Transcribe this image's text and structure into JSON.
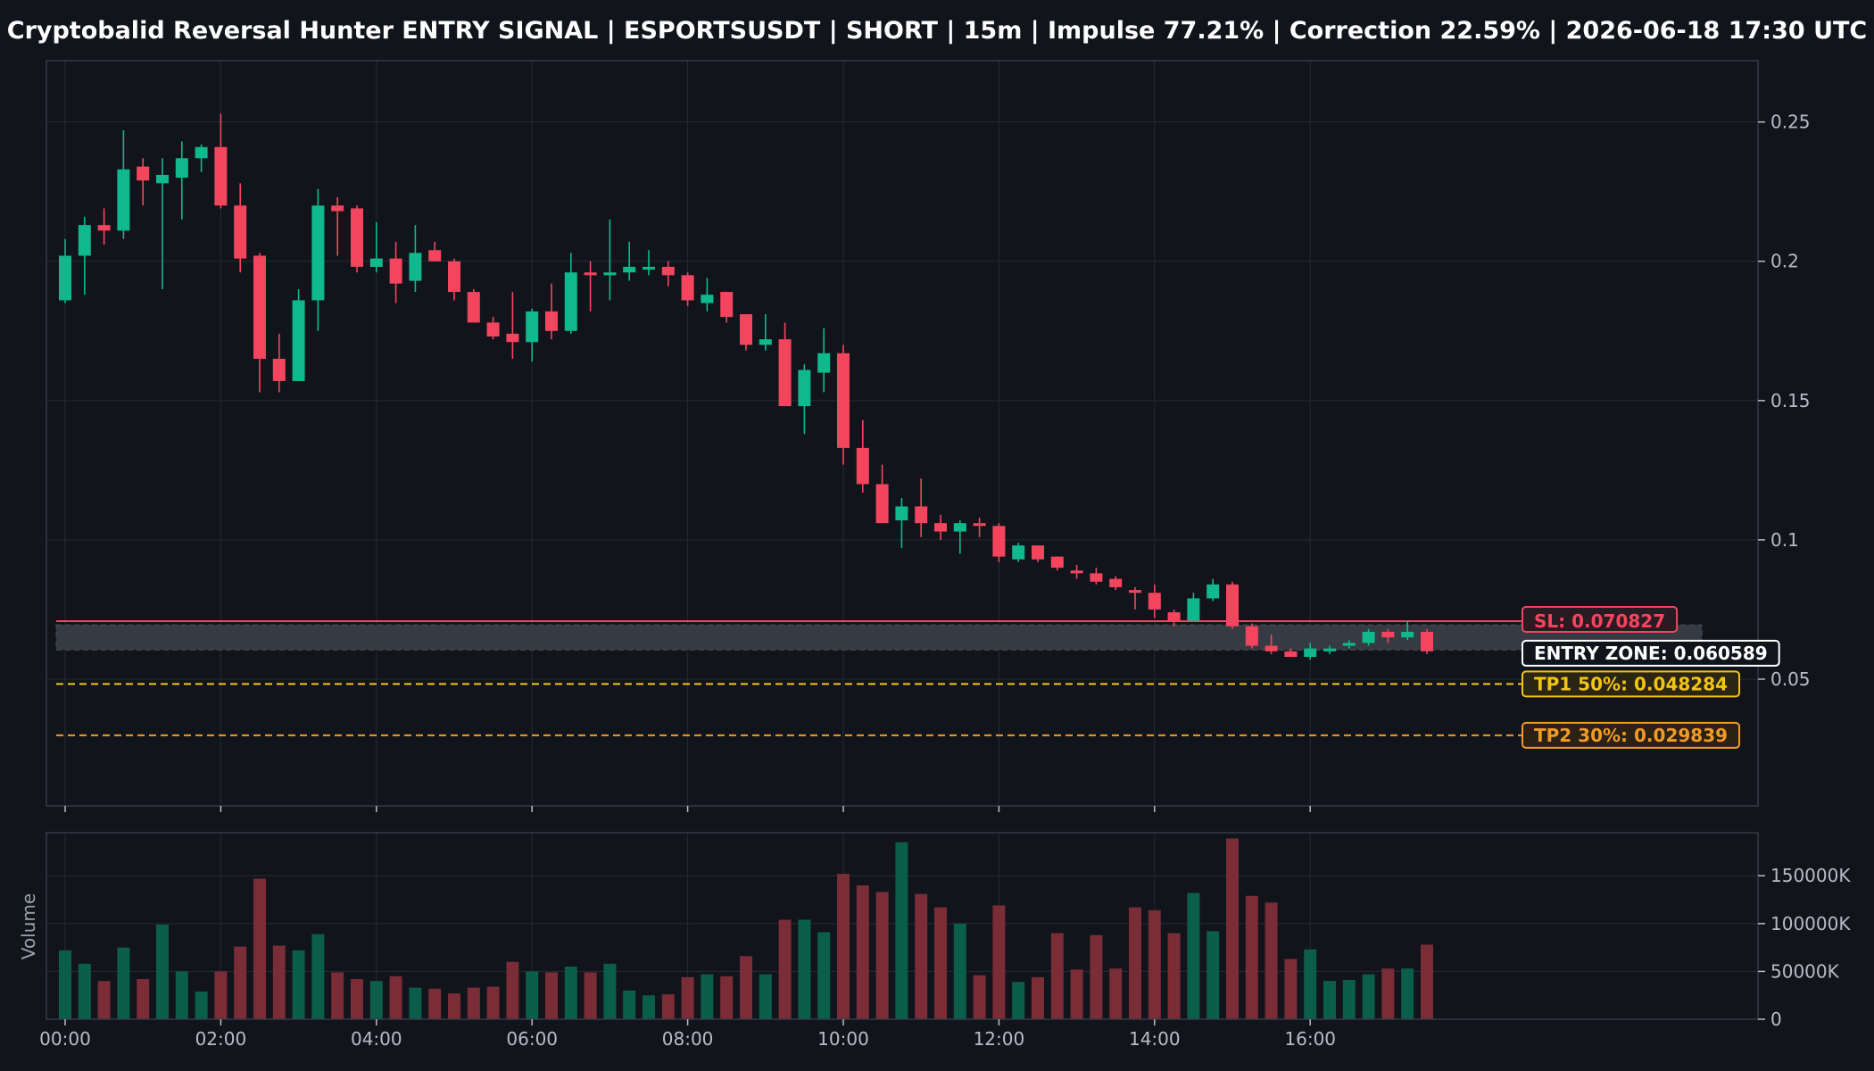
{
  "chart_data": {
    "type": "candlestick",
    "title": "Cryptobalid Reversal Hunter ENTRY SIGNAL | ESPORTSUSDT | SHORT | 15m | Impulse 77.21% | Correction 22.59% | 2026-06-18 17:30 UTC",
    "symbol": "ESPORTSUSDT",
    "timeframe": "15m",
    "x_ticks": [
      "00:00",
      "02:00",
      "04:00",
      "06:00",
      "08:00",
      "10:00",
      "12:00",
      "14:00",
      "16:00"
    ],
    "price_ticks": [
      0.05,
      0.1,
      0.15,
      0.2,
      0.25
    ],
    "price_tick_labels": [
      "0.05",
      "0.1",
      "0.15",
      "0.2",
      "0.25"
    ],
    "price_range": [
      0.0045,
      0.272
    ],
    "volume_label": "Volume",
    "volume_ticks": [
      0,
      50000,
      100000,
      150000
    ],
    "volume_tick_labels": [
      "0",
      "50000K",
      "100000K",
      "150000K"
    ],
    "volume_range": [
      0,
      195000
    ],
    "grid": true,
    "colors": {
      "up": "#0fb98d",
      "down": "#f4455e",
      "volume_up": "#0b5e4a",
      "volume_down": "#7a2c37",
      "sl": "#f4455e",
      "entry": "#ffffff",
      "tp1": "#f2c416",
      "tp2": "#f19a26",
      "entry_zone": "#363a42",
      "background": "#11141b"
    },
    "levels": {
      "sl": {
        "label": "SL: 0.070827",
        "value": 0.070827
      },
      "entry": {
        "label": "ENTRY ZONE: 0.060589",
        "value": 0.060589,
        "zone": [
          0.0605,
          0.0695
        ]
      },
      "tp1": {
        "label": "TP1 50%: 0.048284",
        "value": 0.048284
      },
      "tp2": {
        "label": "TP2 30%: 0.029839",
        "value": 0.029839
      }
    },
    "candles": [
      {
        "t": "00:00",
        "o": 0.186,
        "h": 0.208,
        "l": 0.185,
        "c": 0.202,
        "v": 72000
      },
      {
        "t": "00:15",
        "o": 0.202,
        "h": 0.216,
        "l": 0.188,
        "c": 0.213,
        "v": 58000
      },
      {
        "t": "00:30",
        "o": 0.213,
        "h": 0.219,
        "l": 0.206,
        "c": 0.211,
        "v": 40000
      },
      {
        "t": "00:45",
        "o": 0.211,
        "h": 0.247,
        "l": 0.208,
        "c": 0.233,
        "v": 75000
      },
      {
        "t": "01:00",
        "o": 0.234,
        "h": 0.237,
        "l": 0.22,
        "c": 0.229,
        "v": 42000
      },
      {
        "t": "01:15",
        "o": 0.228,
        "h": 0.237,
        "l": 0.19,
        "c": 0.231,
        "v": 99000
      },
      {
        "t": "01:30",
        "o": 0.23,
        "h": 0.243,
        "l": 0.215,
        "c": 0.237,
        "v": 50000
      },
      {
        "t": "01:45",
        "o": 0.237,
        "h": 0.242,
        "l": 0.232,
        "c": 0.241,
        "v": 29000
      },
      {
        "t": "02:00",
        "o": 0.241,
        "h": 0.253,
        "l": 0.219,
        "c": 0.22,
        "v": 50000
      },
      {
        "t": "02:15",
        "o": 0.22,
        "h": 0.228,
        "l": 0.196,
        "c": 0.201,
        "v": 76000
      },
      {
        "t": "02:30",
        "o": 0.202,
        "h": 0.203,
        "l": 0.153,
        "c": 0.165,
        "v": 147000
      },
      {
        "t": "02:45",
        "o": 0.165,
        "h": 0.174,
        "l": 0.153,
        "c": 0.157,
        "v": 77000
      },
      {
        "t": "03:00",
        "o": 0.157,
        "h": 0.19,
        "l": 0.157,
        "c": 0.186,
        "v": 72000
      },
      {
        "t": "03:15",
        "o": 0.186,
        "h": 0.226,
        "l": 0.175,
        "c": 0.22,
        "v": 89000
      },
      {
        "t": "03:30",
        "o": 0.22,
        "h": 0.223,
        "l": 0.202,
        "c": 0.218,
        "v": 49000
      },
      {
        "t": "03:45",
        "o": 0.219,
        "h": 0.22,
        "l": 0.196,
        "c": 0.198,
        "v": 42000
      },
      {
        "t": "04:00",
        "o": 0.198,
        "h": 0.214,
        "l": 0.196,
        "c": 0.201,
        "v": 40000
      },
      {
        "t": "04:15",
        "o": 0.201,
        "h": 0.207,
        "l": 0.185,
        "c": 0.192,
        "v": 45000
      },
      {
        "t": "04:30",
        "o": 0.193,
        "h": 0.213,
        "l": 0.189,
        "c": 0.203,
        "v": 33000
      },
      {
        "t": "04:45",
        "o": 0.204,
        "h": 0.207,
        "l": 0.2,
        "c": 0.2,
        "v": 32000
      },
      {
        "t": "05:00",
        "o": 0.2,
        "h": 0.201,
        "l": 0.186,
        "c": 0.189,
        "v": 27000
      },
      {
        "t": "05:15",
        "o": 0.189,
        "h": 0.19,
        "l": 0.178,
        "c": 0.178,
        "v": 33000
      },
      {
        "t": "05:30",
        "o": 0.178,
        "h": 0.18,
        "l": 0.172,
        "c": 0.173,
        "v": 34000
      },
      {
        "t": "05:45",
        "o": 0.174,
        "h": 0.189,
        "l": 0.165,
        "c": 0.171,
        "v": 60000
      },
      {
        "t": "06:00",
        "o": 0.171,
        "h": 0.183,
        "l": 0.164,
        "c": 0.182,
        "v": 50000
      },
      {
        "t": "06:15",
        "o": 0.182,
        "h": 0.192,
        "l": 0.172,
        "c": 0.175,
        "v": 49000
      },
      {
        "t": "06:30",
        "o": 0.175,
        "h": 0.203,
        "l": 0.174,
        "c": 0.196,
        "v": 55000
      },
      {
        "t": "06:45",
        "o": 0.196,
        "h": 0.2,
        "l": 0.182,
        "c": 0.195,
        "v": 49000
      },
      {
        "t": "07:00",
        "o": 0.195,
        "h": 0.215,
        "l": 0.186,
        "c": 0.196,
        "v": 58000
      },
      {
        "t": "07:15",
        "o": 0.196,
        "h": 0.207,
        "l": 0.193,
        "c": 0.198,
        "v": 30000
      },
      {
        "t": "07:30",
        "o": 0.197,
        "h": 0.204,
        "l": 0.195,
        "c": 0.198,
        "v": 25000
      },
      {
        "t": "07:45",
        "o": 0.198,
        "h": 0.2,
        "l": 0.191,
        "c": 0.195,
        "v": 26000
      },
      {
        "t": "08:00",
        "o": 0.195,
        "h": 0.196,
        "l": 0.184,
        "c": 0.186,
        "v": 44000
      },
      {
        "t": "08:15",
        "o": 0.185,
        "h": 0.194,
        "l": 0.182,
        "c": 0.188,
        "v": 47000
      },
      {
        "t": "08:30",
        "o": 0.189,
        "h": 0.189,
        "l": 0.178,
        "c": 0.18,
        "v": 45000
      },
      {
        "t": "08:45",
        "o": 0.181,
        "h": 0.181,
        "l": 0.168,
        "c": 0.17,
        "v": 66000
      },
      {
        "t": "09:00",
        "o": 0.17,
        "h": 0.181,
        "l": 0.168,
        "c": 0.172,
        "v": 47000
      },
      {
        "t": "09:15",
        "o": 0.172,
        "h": 0.178,
        "l": 0.148,
        "c": 0.148,
        "v": 104000
      },
      {
        "t": "09:30",
        "o": 0.148,
        "h": 0.163,
        "l": 0.138,
        "c": 0.161,
        "v": 104000
      },
      {
        "t": "09:45",
        "o": 0.16,
        "h": 0.176,
        "l": 0.153,
        "c": 0.167,
        "v": 91000
      },
      {
        "t": "10:00",
        "o": 0.167,
        "h": 0.17,
        "l": 0.127,
        "c": 0.133,
        "v": 152000
      },
      {
        "t": "10:15",
        "o": 0.133,
        "h": 0.143,
        "l": 0.117,
        "c": 0.12,
        "v": 140000
      },
      {
        "t": "10:30",
        "o": 0.12,
        "h": 0.127,
        "l": 0.106,
        "c": 0.106,
        "v": 133000
      },
      {
        "t": "10:45",
        "o": 0.107,
        "h": 0.115,
        "l": 0.097,
        "c": 0.112,
        "v": 185000
      },
      {
        "t": "11:00",
        "o": 0.112,
        "h": 0.122,
        "l": 0.101,
        "c": 0.106,
        "v": 131000
      },
      {
        "t": "11:15",
        "o": 0.106,
        "h": 0.109,
        "l": 0.1,
        "c": 0.103,
        "v": 117000
      },
      {
        "t": "11:30",
        "o": 0.103,
        "h": 0.107,
        "l": 0.095,
        "c": 0.106,
        "v": 100000
      },
      {
        "t": "11:45",
        "o": 0.106,
        "h": 0.108,
        "l": 0.101,
        "c": 0.105,
        "v": 46000
      },
      {
        "t": "12:00",
        "o": 0.105,
        "h": 0.106,
        "l": 0.092,
        "c": 0.094,
        "v": 119000
      },
      {
        "t": "12:15",
        "o": 0.093,
        "h": 0.099,
        "l": 0.092,
        "c": 0.098,
        "v": 39000
      },
      {
        "t": "12:30",
        "o": 0.098,
        "h": 0.098,
        "l": 0.092,
        "c": 0.093,
        "v": 44000
      },
      {
        "t": "12:45",
        "o": 0.094,
        "h": 0.094,
        "l": 0.089,
        "c": 0.09,
        "v": 90000
      },
      {
        "t": "13:00",
        "o": 0.089,
        "h": 0.091,
        "l": 0.086,
        "c": 0.088,
        "v": 52000
      },
      {
        "t": "13:15",
        "o": 0.088,
        "h": 0.09,
        "l": 0.084,
        "c": 0.085,
        "v": 88000
      },
      {
        "t": "13:30",
        "o": 0.086,
        "h": 0.087,
        "l": 0.082,
        "c": 0.083,
        "v": 53000
      },
      {
        "t": "13:45",
        "o": 0.082,
        "h": 0.083,
        "l": 0.075,
        "c": 0.081,
        "v": 117000
      },
      {
        "t": "14:00",
        "o": 0.081,
        "h": 0.084,
        "l": 0.072,
        "c": 0.075,
        "v": 114000
      },
      {
        "t": "14:15",
        "o": 0.074,
        "h": 0.075,
        "l": 0.069,
        "c": 0.071,
        "v": 90000
      },
      {
        "t": "14:30",
        "o": 0.071,
        "h": 0.081,
        "l": 0.071,
        "c": 0.079,
        "v": 132000
      },
      {
        "t": "14:45",
        "o": 0.079,
        "h": 0.086,
        "l": 0.078,
        "c": 0.084,
        "v": 92000
      },
      {
        "t": "15:00",
        "o": 0.084,
        "h": 0.085,
        "l": 0.068,
        "c": 0.069,
        "v": 189000
      },
      {
        "t": "15:15",
        "o": 0.069,
        "h": 0.07,
        "l": 0.061,
        "c": 0.062,
        "v": 129000
      },
      {
        "t": "15:30",
        "o": 0.062,
        "h": 0.066,
        "l": 0.059,
        "c": 0.06,
        "v": 122000
      },
      {
        "t": "15:45",
        "o": 0.06,
        "h": 0.061,
        "l": 0.058,
        "c": 0.058,
        "v": 63000
      },
      {
        "t": "16:00",
        "o": 0.058,
        "h": 0.063,
        "l": 0.057,
        "c": 0.061,
        "v": 73000
      },
      {
        "t": "16:15",
        "o": 0.06,
        "h": 0.062,
        "l": 0.059,
        "c": 0.061,
        "v": 40000
      },
      {
        "t": "16:30",
        "o": 0.062,
        "h": 0.064,
        "l": 0.061,
        "c": 0.063,
        "v": 41000
      },
      {
        "t": "16:45",
        "o": 0.063,
        "h": 0.068,
        "l": 0.062,
        "c": 0.067,
        "v": 47000
      },
      {
        "t": "17:00",
        "o": 0.067,
        "h": 0.068,
        "l": 0.063,
        "c": 0.065,
        "v": 53000
      },
      {
        "t": "17:15",
        "o": 0.065,
        "h": 0.071,
        "l": 0.064,
        "c": 0.067,
        "v": 53000
      },
      {
        "t": "17:30",
        "o": 0.067,
        "h": 0.068,
        "l": 0.059,
        "c": 0.06,
        "v": 78000
      }
    ]
  }
}
